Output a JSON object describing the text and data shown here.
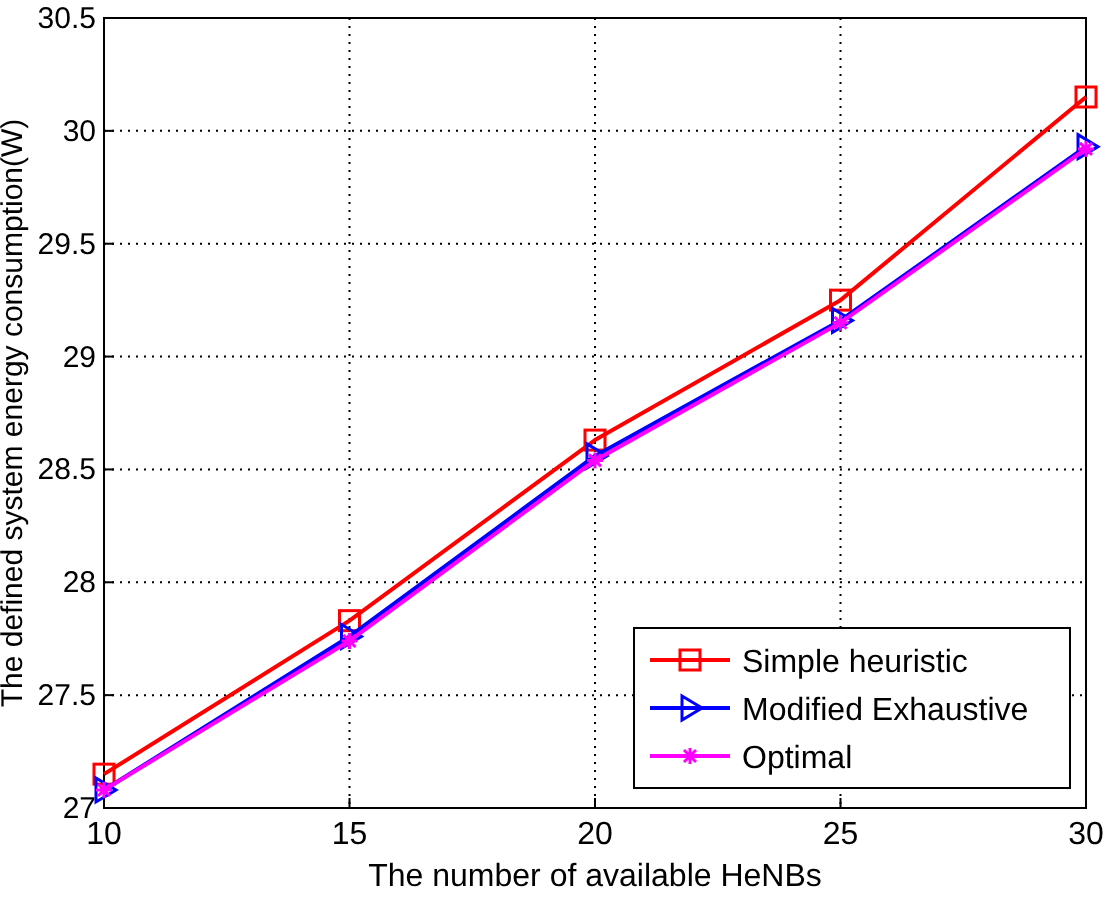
{
  "chart_data": {
    "type": "line",
    "xlabel": "The number of available HeNBs",
    "ylabel": "The defined system energy consumption(W)",
    "x": [
      10,
      15,
      20,
      25,
      30
    ],
    "xlim": [
      10,
      30
    ],
    "xticks": [
      10,
      15,
      20,
      25,
      30
    ],
    "ylim": [
      27,
      30.5
    ],
    "yticks": [
      27,
      27.5,
      28,
      28.5,
      29,
      29.5,
      30,
      30.5
    ],
    "grid": true,
    "legend": "bottom right",
    "line_style": "solid",
    "series": [
      {
        "name": "Simple heuristic",
        "color": "#ff0000",
        "marker": "square",
        "values": [
          27.15,
          27.83,
          28.63,
          29.25,
          30.15
        ]
      },
      {
        "name": "Modified Exhaustive",
        "color": "#0000ff",
        "marker": "triangle",
        "values": [
          27.08,
          27.76,
          28.56,
          29.16,
          29.93
        ]
      },
      {
        "name": "Optimal",
        "color": "#ff00ff",
        "marker": "cross",
        "values": [
          27.08,
          27.74,
          28.54,
          29.15,
          29.92
        ]
      }
    ]
  }
}
